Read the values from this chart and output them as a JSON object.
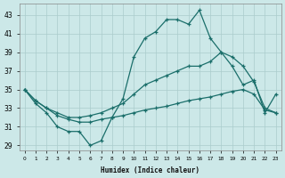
{
  "xlabel": "Humidex (Indice chaleur)",
  "xlim": [
    -0.5,
    23.5
  ],
  "ylim": [
    28.5,
    44.2
  ],
  "yticks": [
    29,
    31,
    33,
    35,
    37,
    39,
    41,
    43
  ],
  "xticks": [
    0,
    1,
    2,
    3,
    4,
    5,
    6,
    7,
    8,
    9,
    10,
    11,
    12,
    13,
    14,
    15,
    16,
    17,
    18,
    19,
    20,
    21,
    22,
    23
  ],
  "background_color": "#cce8e8",
  "grid_color": "#aacccc",
  "line_color": "#1a6e6a",
  "line1_y": [
    35.0,
    33.5,
    32.5,
    31.0,
    30.5,
    30.5,
    29.0,
    29.5,
    32.0,
    34.0,
    38.5,
    40.5,
    41.2,
    42.5,
    42.5,
    42.0,
    43.5,
    40.5,
    39.0,
    37.5,
    35.5,
    36.0,
    32.5,
    34.5
  ],
  "line2_y": [
    35.0,
    33.8,
    33.0,
    32.5,
    32.0,
    32.0,
    32.2,
    32.5,
    33.0,
    33.5,
    34.5,
    35.5,
    36.0,
    36.5,
    37.0,
    37.5,
    37.5,
    38.0,
    39.0,
    38.5,
    37.5,
    35.8,
    33.0,
    32.5
  ],
  "line3_y": [
    35.0,
    33.8,
    33.0,
    32.2,
    31.8,
    31.5,
    31.5,
    31.8,
    32.0,
    32.2,
    32.5,
    32.8,
    33.0,
    33.2,
    33.5,
    33.8,
    34.0,
    34.2,
    34.5,
    34.8,
    35.0,
    34.5,
    32.8,
    32.5
  ]
}
